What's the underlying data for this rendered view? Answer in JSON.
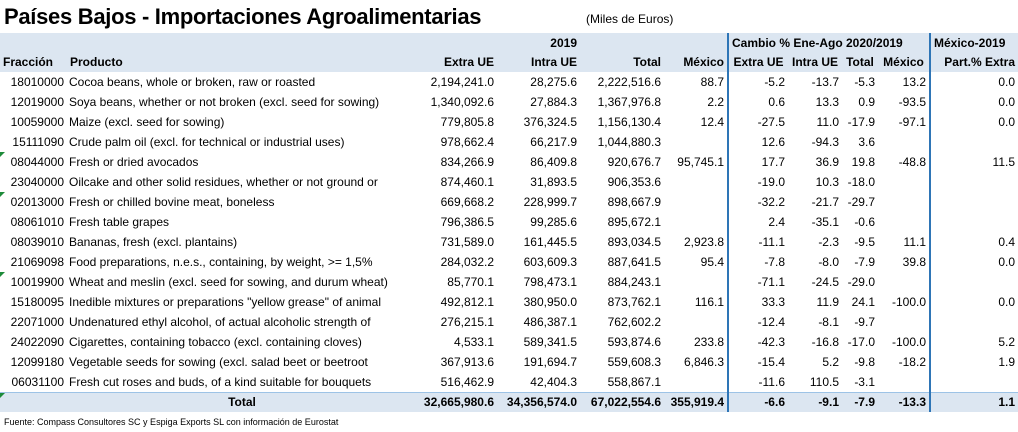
{
  "title": "Países Bajos - Importaciones Agroalimentarias",
  "units": "(Miles de Euros)",
  "header": {
    "group_2019": "2019",
    "group_change": "Cambio % Ene-Ago 2020/2019",
    "group_mexico": "México-2019",
    "columns": [
      "Fracción",
      "Producto",
      "Extra UE",
      "Intra UE",
      "Total",
      "México",
      "Extra UE",
      "Intra UE",
      "Total",
      "México",
      "Part.% Extra"
    ]
  },
  "rows": [
    {
      "code": "18010000",
      "product": "Cocoa beans, whole or broken, raw or roasted",
      "v": [
        "2,194,241.0",
        "28,275.6",
        "2,222,516.6",
        "88.7",
        "-5.2",
        "-13.7",
        "-5.3",
        "13.2",
        "0.0"
      ],
      "mark": false
    },
    {
      "code": "12019000",
      "product": "Soya beans, whether or not broken (excl. seed for sowing)",
      "v": [
        "1,340,092.6",
        "27,884.3",
        "1,367,976.8",
        "2.2",
        "0.6",
        "13.3",
        "0.9",
        "-93.5",
        "0.0"
      ],
      "mark": false
    },
    {
      "code": "10059000",
      "product": "Maize (excl. seed for sowing)",
      "v": [
        "779,805.8",
        "376,324.5",
        "1,156,130.4",
        "12.4",
        "-27.5",
        "11.0",
        "-17.9",
        "-97.1",
        "0.0"
      ],
      "mark": false
    },
    {
      "code": "15111090",
      "product": "Crude palm oil (excl. for technical or industrial uses)",
      "v": [
        "978,662.4",
        "66,217.9",
        "1,044,880.3",
        "",
        "12.6",
        "-94.3",
        "3.6",
        "",
        ""
      ],
      "mark": false
    },
    {
      "code": "08044000",
      "product": "Fresh or dried avocados",
      "v": [
        "834,266.9",
        "86,409.8",
        "920,676.7",
        "95,745.1",
        "17.7",
        "36.9",
        "19.8",
        "-48.8",
        "11.5"
      ],
      "mark": true
    },
    {
      "code": "23040000",
      "product": "Oilcake and other solid residues, whether or not ground or",
      "v": [
        "874,460.1",
        "31,893.5",
        "906,353.6",
        "",
        "-19.0",
        "10.3",
        "-18.0",
        "",
        ""
      ],
      "mark": false
    },
    {
      "code": "02013000",
      "product": "Fresh or chilled bovine meat, boneless",
      "v": [
        "669,668.2",
        "228,999.7",
        "898,667.9",
        "",
        "-32.2",
        "-21.7",
        "-29.7",
        "",
        ""
      ],
      "mark": true
    },
    {
      "code": "08061010",
      "product": "Fresh table grapes",
      "v": [
        "796,386.5",
        "99,285.6",
        "895,672.1",
        "",
        "2.4",
        "-35.1",
        "-0.6",
        "",
        ""
      ],
      "mark": false
    },
    {
      "code": "08039010",
      "product": "Bananas, fresh (excl. plantains)",
      "v": [
        "731,589.0",
        "161,445.5",
        "893,034.5",
        "2,923.8",
        "-11.1",
        "-2.3",
        "-9.5",
        "11.1",
        "0.4"
      ],
      "mark": false
    },
    {
      "code": "21069098",
      "product": "Food preparations, n.e.s., containing, by weight, >= 1,5%",
      "v": [
        "284,032.2",
        "603,609.3",
        "887,641.5",
        "95.4",
        "-7.8",
        "-8.0",
        "-7.9",
        "39.8",
        "0.0"
      ],
      "mark": false
    },
    {
      "code": "10019900",
      "product": "Wheat and meslin (excl. seed for sowing, and durum wheat)",
      "v": [
        "85,770.1",
        "798,473.1",
        "884,243.1",
        "",
        "-71.1",
        "-24.5",
        "-29.0",
        "",
        ""
      ],
      "mark": true
    },
    {
      "code": "15180095",
      "product": "Inedible mixtures or preparations \"yellow grease\" of animal",
      "v": [
        "492,812.1",
        "380,950.0",
        "873,762.1",
        "116.1",
        "33.3",
        "11.9",
        "24.1",
        "-100.0",
        "0.0"
      ],
      "mark": false
    },
    {
      "code": "22071000",
      "product": "Undenatured ethyl alcohol, of actual alcoholic strength of",
      "v": [
        "276,215.1",
        "486,387.1",
        "762,602.2",
        "",
        "-12.4",
        "-8.1",
        "-9.7",
        "",
        ""
      ],
      "mark": false
    },
    {
      "code": "24022090",
      "product": "Cigarettes, containing tobacco (excl. containing cloves)",
      "v": [
        "4,533.1",
        "589,341.5",
        "593,874.6",
        "233.8",
        "-42.3",
        "-16.8",
        "-17.0",
        "-100.0",
        "5.2"
      ],
      "mark": false
    },
    {
      "code": "12099180",
      "product": "Vegetable seeds for sowing (excl. salad beet or beetroot",
      "v": [
        "367,913.6",
        "191,694.7",
        "559,608.3",
        "6,846.3",
        "-15.4",
        "5.2",
        "-9.8",
        "-18.2",
        "1.9"
      ],
      "mark": false
    },
    {
      "code": "06031100",
      "product": "Fresh cut roses and buds, of a kind suitable for bouquets",
      "v": [
        "516,462.9",
        "42,404.3",
        "558,867.1",
        "",
        "-11.6",
        "110.5",
        "-3.1",
        "",
        ""
      ],
      "mark": false
    }
  ],
  "total": {
    "label": "Total",
    "v": [
      "32,665,980.6",
      "34,356,574.0",
      "67,022,554.6",
      "355,919.4",
      "-6.6",
      "-9.1",
      "-7.9",
      "-13.3",
      "1.1"
    ]
  },
  "footer": "Fuente: Compass Consultores SC y Espiga Exports SL con información de Eurostat",
  "colors": {
    "header_bg": "#dce6f1",
    "divider": "#2e75b6",
    "comment_marker": "#1e8b3a"
  }
}
